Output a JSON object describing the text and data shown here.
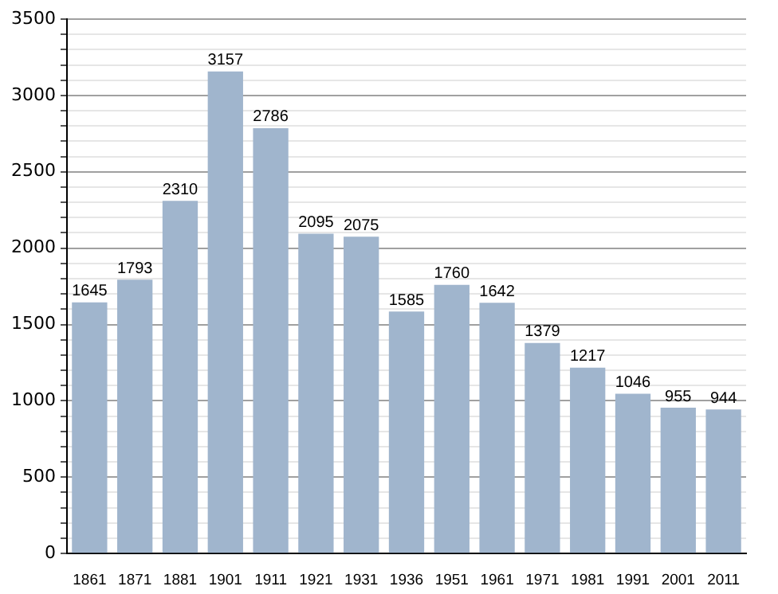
{
  "chart_data": {
    "type": "bar",
    "categories": [
      "1861",
      "1871",
      "1881",
      "1901",
      "1911",
      "1921",
      "1931",
      "1936",
      "1951",
      "1961",
      "1971",
      "1981",
      "1991",
      "2001",
      "2011"
    ],
    "values": [
      1645,
      1793,
      2310,
      3157,
      2786,
      2095,
      2075,
      1585,
      1760,
      1642,
      1379,
      1217,
      1046,
      955,
      944
    ],
    "color": "#a0b5cd",
    "data_labels": true,
    "grid": "y",
    "legend": false,
    "ylim": [
      0,
      3500
    ],
    "yticks": [
      0,
      {
        "value": 100,
        "label": null
      },
      {
        "value": 200,
        "label": null
      },
      {
        "value": 300,
        "label": null
      },
      {
        "value": 400,
        "label": null
      },
      500,
      {
        "value": 600,
        "label": null
      },
      {
        "value": 700,
        "label": null
      },
      {
        "value": 800,
        "label": null
      },
      {
        "value": 900,
        "label": null
      },
      1000,
      {
        "value": 1100,
        "label": null
      },
      {
        "value": 1200,
        "label": null
      },
      {
        "value": 1300,
        "label": null
      },
      {
        "value": 1400,
        "label": null
      },
      1500,
      {
        "value": 1600,
        "label": null
      },
      {
        "value": 1700,
        "label": null
      },
      {
        "value": 1800,
        "label": null
      },
      {
        "value": 1900,
        "label": null
      },
      2000,
      {
        "value": 2100,
        "label": null
      },
      {
        "value": 2200,
        "label": null
      },
      {
        "value": 2300,
        "label": null
      },
      {
        "value": 2400,
        "label": null
      },
      2500,
      {
        "value": 2600,
        "label": null
      },
      {
        "value": 2700,
        "label": null
      },
      {
        "value": 2800,
        "label": null
      },
      {
        "value": 2900,
        "label": null
      },
      3000,
      {
        "value": 3100,
        "label": null
      },
      {
        "value": 3200,
        "label": null
      },
      {
        "value": 3300,
        "label": null
      },
      {
        "value": 3400,
        "label": null
      },
      3500
    ]
  }
}
